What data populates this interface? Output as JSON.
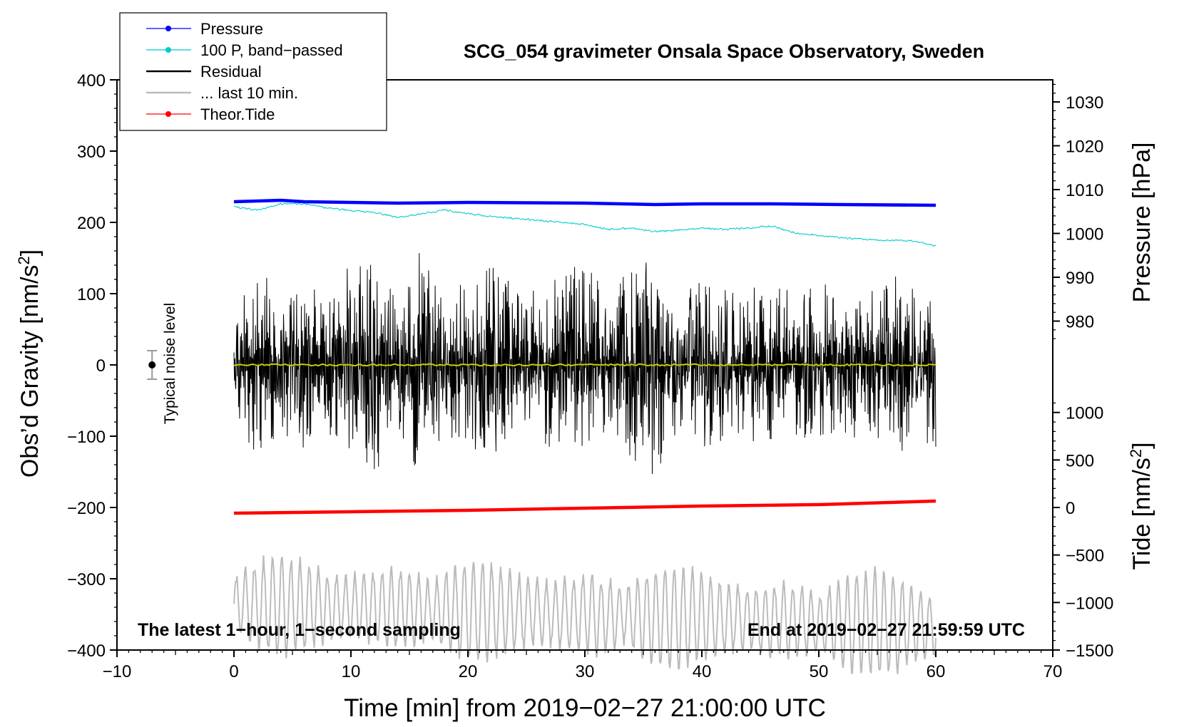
{
  "chart_data": {
    "type": "line",
    "title": "SCG_054 gravimeter Onsala Space Observatory, Sweden",
    "xlabel": "Time [min] from 2019−02−27 21:00:00 UTC",
    "ylabel_left": "Obs’d Gravity [nm/s",
    "ylabel_left_suffix": "]",
    "ylabel_right_pressure": "Pressure [hPa]",
    "ylabel_right_tide": "Tide [nm/s",
    "ylabel_right_tide_suffix": "]",
    "superscript": "2",
    "xlim": [
      -10,
      70
    ],
    "ylim_left": [
      -400,
      400
    ],
    "xticks": [
      -10,
      0,
      10,
      20,
      30,
      40,
      50,
      60,
      70
    ],
    "xtick_labels": [
      "−10",
      "0",
      "10",
      "20",
      "30",
      "40",
      "50",
      "60",
      "70"
    ],
    "yticks_left": [
      400,
      300,
      200,
      100,
      0,
      -100,
      -200,
      -300,
      -400
    ],
    "ytick_labels_left": [
      "400",
      "300",
      "200",
      "100",
      "0",
      "−100",
      "−200",
      "−300",
      "−400"
    ],
    "pressure_ticks": [
      1030,
      1020,
      1010,
      1000,
      990,
      980
    ],
    "pressure_tick_labels": [
      "1030",
      "1020",
      "1010",
      "1000",
      "990",
      "980"
    ],
    "pressure_to_gravity": {
      "p_ref": 1010,
      "g_at_ref": 246,
      "scale_per_hpa": 6.15
    },
    "tide_ticks": [
      1000,
      500,
      0,
      -500,
      -1000,
      -1500
    ],
    "tide_tick_labels": [
      "1000",
      "500",
      "0",
      "−500",
      "−1000",
      "−1500"
    ],
    "tide_to_gravity": {
      "t_ref": 0,
      "g_at_ref": -200,
      "scale_per_nms2": 0.1333
    },
    "annotation_left": "The latest 1−hour, 1−second sampling",
    "annotation_right": "End at 2019−02−27 21:59:59 UTC",
    "noise_label": "Typical noise level",
    "noise_bar": {
      "x": -7,
      "center": 0,
      "half_width": 20
    },
    "legend": [
      {
        "label": "Pressure",
        "color": "#0000ff",
        "style": "line-dot"
      },
      {
        "label": "100 P, band−passed",
        "color": "#00cccc",
        "style": "line-dot"
      },
      {
        "label": "Residual",
        "color": "#000000",
        "style": "line"
      },
      {
        "label": "... last 10 min.",
        "color": "#bbbbbb",
        "style": "line"
      },
      {
        "label": "Theor.Tide",
        "color": "#ff0000",
        "style": "line-dot"
      }
    ],
    "series": [
      {
        "name": "Pressure",
        "color": "#0000ff",
        "x": [
          0,
          4,
          6,
          10,
          14,
          20,
          30,
          36,
          40,
          46,
          52,
          60
        ],
        "y": [
          229,
          231,
          229,
          228,
          227,
          228,
          227,
          225,
          226,
          226,
          225,
          224
        ]
      },
      {
        "name": "100 P, band-passed",
        "color": "#00cccc",
        "x": [
          0,
          2,
          4,
          6,
          8,
          12,
          14,
          16,
          18,
          22,
          26,
          30,
          32,
          34,
          36,
          40,
          42,
          44,
          46,
          48,
          50,
          52,
          56,
          58,
          60
        ],
        "y": [
          222,
          217,
          226,
          226,
          220,
          214,
          207,
          212,
          217,
          208,
          203,
          197,
          190,
          192,
          187,
          192,
          190,
          192,
          195,
          185,
          182,
          178,
          175,
          174,
          167
        ]
      },
      {
        "name": "Residual mean",
        "color": "#cccc00",
        "x": [
          0,
          60
        ],
        "y": [
          0,
          0
        ]
      },
      {
        "name": "Residual envelope",
        "color": "#000000",
        "x": [
          0,
          2,
          4,
          6,
          8,
          10,
          12,
          14,
          16,
          18,
          20,
          22,
          24,
          26,
          28,
          30,
          32,
          34,
          36,
          38,
          40,
          42,
          44,
          46,
          48,
          50,
          52,
          54,
          56,
          58,
          60
        ],
        "y": [
          65,
          145,
          95,
          120,
          95,
          145,
          160,
          90,
          175,
          95,
          125,
          165,
          100,
          115,
          130,
          150,
          110,
          135,
          160,
          95,
          120,
          105,
          110,
          120,
          100,
          120,
          105,
          100,
          130,
          120,
          115
        ]
      },
      {
        "name": "Last 10 min",
        "color": "#bbbbbb",
        "x": [
          0,
          60
        ],
        "y": [
          -335,
          -365
        ]
      },
      {
        "name": "Theor.Tide",
        "color": "#ff0000",
        "x": [
          0,
          10,
          20,
          30,
          40,
          50,
          60
        ],
        "y": [
          -208,
          -206,
          -204,
          -201,
          -198,
          -196,
          -191
        ]
      }
    ]
  }
}
